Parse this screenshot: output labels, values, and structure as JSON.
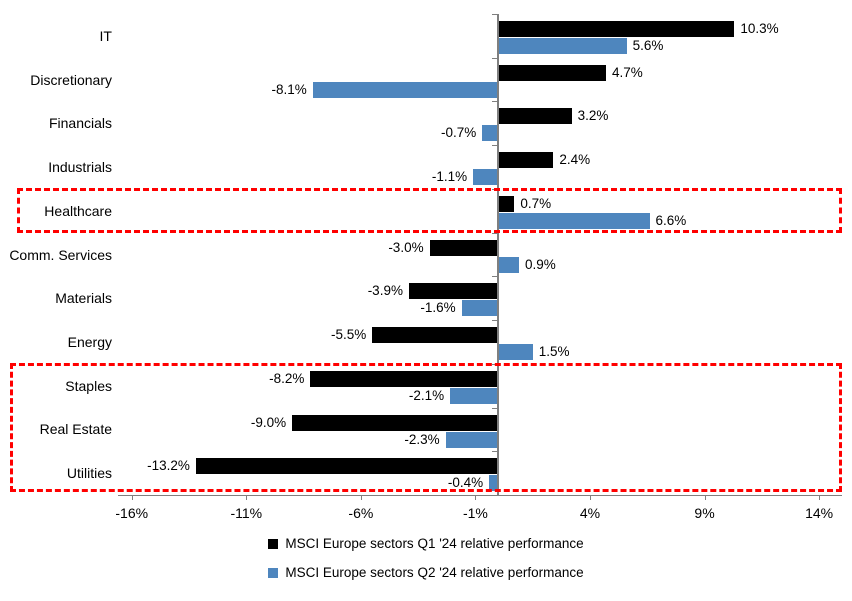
{
  "chart_data": {
    "type": "bar",
    "orientation": "horizontal",
    "title": "",
    "categories": [
      "IT",
      "Discretionary",
      "Financials",
      "Industrials",
      "Healthcare",
      "Comm. Services",
      "Materials",
      "Energy",
      "Staples",
      "Real Estate",
      "Utilities"
    ],
    "series": [
      {
        "name": "MSCI Europe sectors Q1 '24 relative performance",
        "color": "#000000",
        "values": [
          10.3,
          4.7,
          3.2,
          2.4,
          0.7,
          -3.0,
          -3.9,
          -5.5,
          -8.2,
          -9.0,
          -13.2
        ],
        "labels": [
          "10.3%",
          "4.7%",
          "3.2%",
          "2.4%",
          "0.7%",
          "-3.0%",
          "-3.9%",
          "-5.5%",
          "-8.2%",
          "-9.0%",
          "-13.2%"
        ]
      },
      {
        "name": "MSCI Europe sectors Q2 '24 relative performance",
        "color": "#4E86BE",
        "values": [
          5.6,
          -8.1,
          -0.7,
          -1.1,
          6.6,
          0.9,
          -1.6,
          1.5,
          -2.1,
          -2.3,
          -0.4
        ],
        "labels": [
          "5.6%",
          "-8.1%",
          "-0.7%",
          "-1.1%",
          "6.6%",
          "0.9%",
          "-1.6%",
          "1.5%",
          "-2.1%",
          "-2.3%",
          "-0.4%"
        ]
      }
    ],
    "x_axis": {
      "ticks": [
        -16,
        -11,
        -6,
        -1,
        4,
        9,
        14
      ],
      "tick_labels": [
        "-16%",
        "-11%",
        "-6%",
        "-1%",
        "4%",
        "9%",
        "14%"
      ],
      "range": [
        -16.6,
        15.0
      ],
      "unit": "%"
    },
    "grid": false,
    "legend_position": "bottom",
    "highlights": [
      {
        "name": "healthcare-highlight",
        "from_category": "Healthcare",
        "to_category": "Healthcare",
        "color": "#FF0000",
        "style": "dashed"
      },
      {
        "name": "defensives-highlight",
        "from_category": "Staples",
        "to_category": "Utilities",
        "color": "#FF0000",
        "style": "dashed"
      }
    ]
  },
  "colors": {
    "q1_bar": "#000000",
    "q2_bar": "#4E86BE",
    "highlight": "#FF0000",
    "axis": "#7F7F7F",
    "text": "#000000",
    "background": "#FFFFFF"
  }
}
